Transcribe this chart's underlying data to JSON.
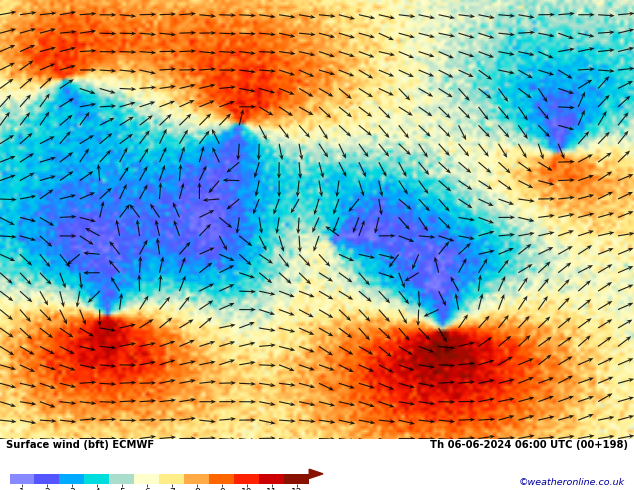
{
  "title_left": "Surface wind (bft) ECMWF",
  "title_right": "Th 06-06-2024 06:00 UTC (00+198)",
  "background_color": "#ffffff",
  "fig_width": 6.34,
  "fig_height": 4.9,
  "dpi": 100,
  "copyright": "©weatheronline.co.uk",
  "bft_colors": [
    "#8888FF",
    "#5555FF",
    "#00AAFF",
    "#00DDDD",
    "#AADDCC",
    "#FFFFCC",
    "#FFEE88",
    "#FFAA44",
    "#FF6600",
    "#FF2200",
    "#CC0000",
    "#881100"
  ],
  "cmap_stops": [
    [
      0.0,
      "#8888FF"
    ],
    [
      0.08,
      "#5555FF"
    ],
    [
      0.17,
      "#00AAFF"
    ],
    [
      0.25,
      "#00DDDD"
    ],
    [
      0.33,
      "#AADDCC"
    ],
    [
      0.42,
      "#FFFFCC"
    ],
    [
      0.5,
      "#FFEE88"
    ],
    [
      0.58,
      "#FFAA44"
    ],
    [
      0.67,
      "#FF6600"
    ],
    [
      0.75,
      "#FF2200"
    ],
    [
      0.83,
      "#CC0000"
    ],
    [
      0.92,
      "#881100"
    ],
    [
      1.0,
      "#550000"
    ]
  ]
}
